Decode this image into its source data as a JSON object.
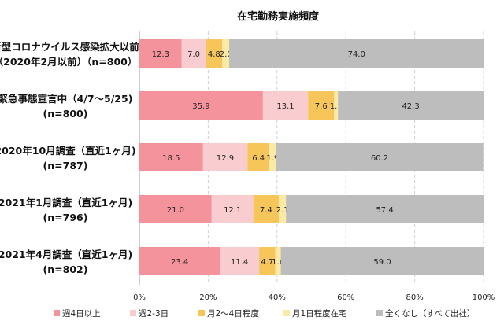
{
  "chart_data": {
    "type": "bar",
    "orientation": "horizontal",
    "stacked": true,
    "title": "在宅勤務実施頻度",
    "categories": [
      {
        "line1": "新型コロナウイルス感染拡大以前",
        "line2": "（2020年2月以前）（n=800）"
      },
      {
        "line1": "緊急事態宣言中（4/7～5/25)",
        "line2": "(n=800)"
      },
      {
        "line1": "2020年10月調査（直近1ヶ月)",
        "line2": "(n=787)"
      },
      {
        "line1": "2021年1月調査（直近1ヶ月)",
        "line2": "(n=796)"
      },
      {
        "line1": "2021年4月調査（直近1ヶ月)",
        "line2": "(n=802)"
      }
    ],
    "series": [
      {
        "name": "週4日以上",
        "color": "#f4939b",
        "values": [
          12.3,
          35.9,
          18.5,
          21.0,
          23.4
        ],
        "labels": [
          "12.3",
          "35.9",
          "18.5",
          "21.0",
          "23.4"
        ]
      },
      {
        "name": "週2-3日",
        "color": "#f9cdd0",
        "values": [
          7.0,
          13.1,
          12.9,
          12.1,
          11.4
        ],
        "labels": [
          "7.0",
          "13.1",
          "12.9",
          "12.1",
          "11.4"
        ]
      },
      {
        "name": "月2～4日程度",
        "color": "#f6c65b",
        "values": [
          4.8,
          7.6,
          6.4,
          7.4,
          4.7
        ],
        "labels": [
          "4.8",
          "7.6",
          "6.4",
          "7.4",
          "4.7"
        ]
      },
      {
        "name": "月1日程度在宅",
        "color": "#faeaa5",
        "values": [
          2.0,
          1.1,
          1.9,
          2.1,
          1.6
        ],
        "labels": [
          "2.0",
          "1.1",
          "1.9",
          "2.1",
          "1.6"
        ]
      },
      {
        "name": "全くなし（すべて出社）",
        "color": "#bdbdbd",
        "values": [
          74.0,
          42.3,
          60.2,
          57.4,
          59.0
        ],
        "labels": [
          "74.0",
          "42.3",
          "60.2",
          "57.4",
          "59.0"
        ]
      }
    ],
    "xaxis": {
      "ticks": [
        0,
        20,
        40,
        60,
        80,
        100
      ],
      "tick_labels": [
        "0%",
        "20%",
        "40%",
        "60%",
        "80%",
        "100%"
      ],
      "range": [
        0,
        100
      ]
    },
    "grid": true,
    "legend_position": "bottom"
  }
}
